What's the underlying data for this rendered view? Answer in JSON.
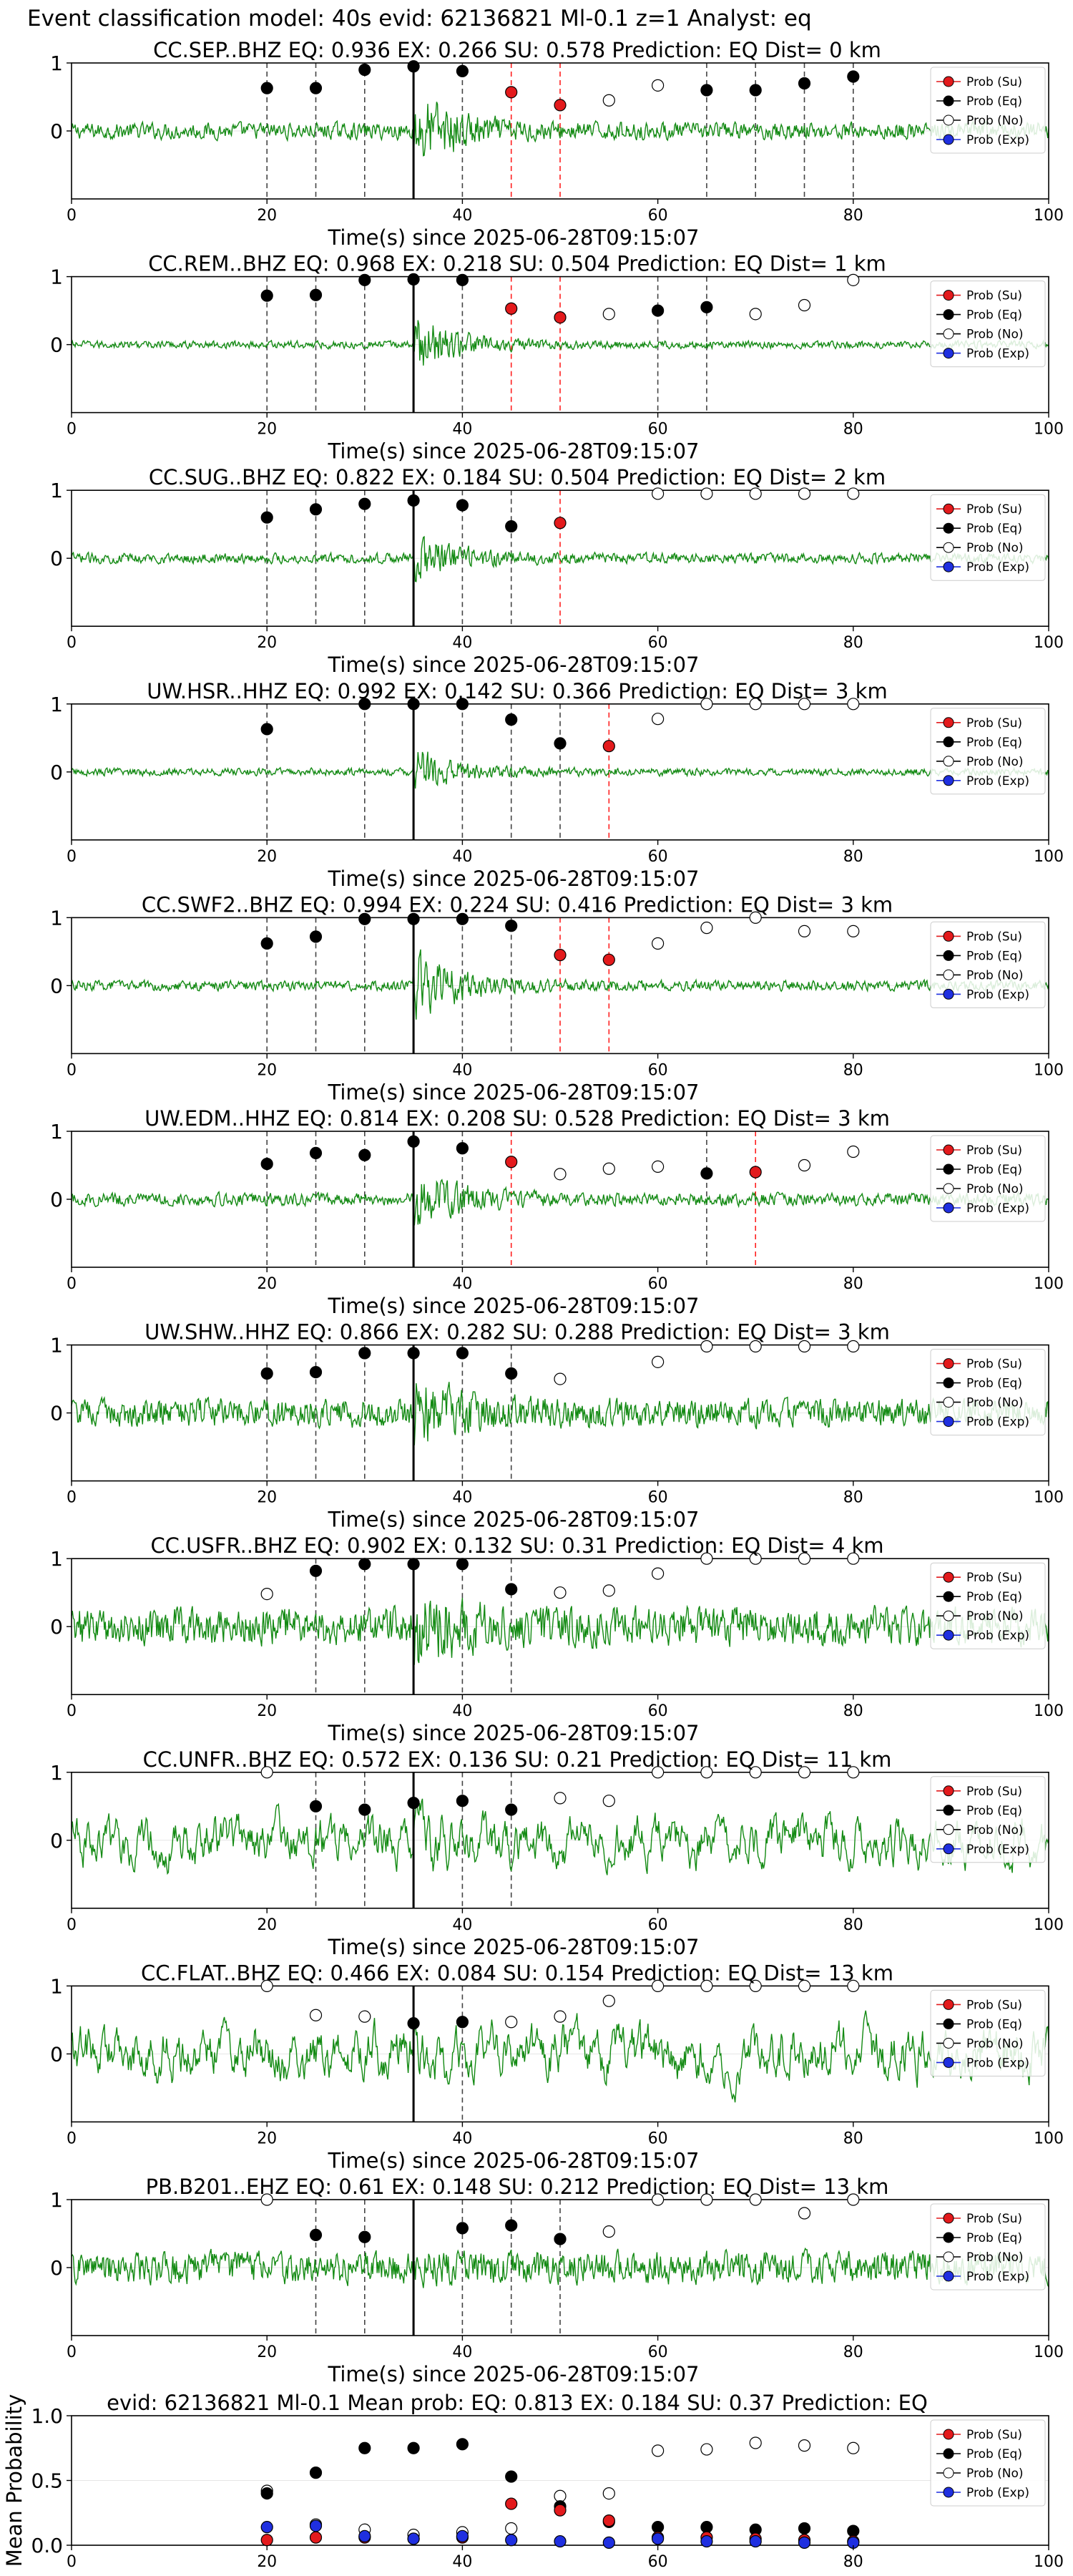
{
  "header": {
    "title": "Event classification model: 40s evid: 62136821 Ml-0.1 z=1 Analyst: eq"
  },
  "common": {
    "xlabel": "Time(s) since 2025-06-28T09:15:07",
    "legend": [
      "Prob (Su)",
      "Prob (Eq)",
      "Prob (No)",
      "Prob (Exp)"
    ],
    "colors": {
      "su": "#e31a1c",
      "eq": "#000000",
      "no": "#ffffff",
      "exp": "#1f2fe0",
      "trace": "#138a13"
    }
  },
  "chart_data": [
    {
      "type": "line",
      "station": "CC.SEP..BHZ",
      "title": "CC.SEP..BHZ   EQ: 0.936  EX: 0.266  SU: 0.578   Prediction: EQ    Dist= 0 km",
      "xlim": [
        0,
        100
      ],
      "ylim": [
        -1,
        1
      ],
      "xticks": [
        0,
        20,
        40,
        60,
        80,
        100
      ],
      "yticks": [
        1,
        0
      ],
      "onset": 35,
      "noise_amp": 0.13,
      "event_amp": 0.6,
      "eq_points": [
        [
          20,
          0.63
        ],
        [
          25,
          0.63
        ],
        [
          30,
          0.9
        ],
        [
          35,
          0.95
        ],
        [
          40,
          0.88
        ],
        [
          65,
          0.6
        ],
        [
          70,
          0.6
        ],
        [
          75,
          0.7
        ],
        [
          80,
          0.8
        ]
      ],
      "su_points": [
        [
          45,
          0.57
        ],
        [
          50,
          0.38
        ]
      ],
      "no_points": [
        [
          55,
          0.45
        ],
        [
          60,
          0.67
        ]
      ],
      "exp_points": [],
      "dash_black": [
        20,
        25,
        30,
        40,
        65,
        70,
        75,
        80
      ],
      "dash_red": [
        45,
        50
      ]
    },
    {
      "type": "line",
      "station": "CC.REM..BHZ",
      "title": "CC.REM..BHZ   EQ: 0.968  EX: 0.218  SU: 0.504   Prediction: EQ    Dist= 1 km",
      "xlim": [
        0,
        100
      ],
      "ylim": [
        -1,
        1
      ],
      "xticks": [
        0,
        20,
        40,
        60,
        80,
        100
      ],
      "yticks": [
        1,
        0
      ],
      "onset": 35,
      "noise_amp": 0.06,
      "event_amp": 0.45,
      "eq_points": [
        [
          20,
          0.72
        ],
        [
          25,
          0.73
        ],
        [
          30,
          0.95
        ],
        [
          35,
          0.96
        ],
        [
          40,
          0.95
        ],
        [
          60,
          0.5
        ],
        [
          65,
          0.55
        ]
      ],
      "su_points": [
        [
          45,
          0.53
        ],
        [
          50,
          0.4
        ]
      ],
      "no_points": [
        [
          55,
          0.45
        ],
        [
          70,
          0.45
        ],
        [
          75,
          0.58
        ],
        [
          80,
          0.95
        ]
      ],
      "exp_points": [],
      "dash_black": [
        20,
        25,
        30,
        40,
        60,
        65
      ],
      "dash_red": [
        45,
        50
      ]
    },
    {
      "type": "line",
      "station": "CC.SUG..BHZ",
      "title": "CC.SUG..BHZ   EQ: 0.822  EX: 0.184  SU: 0.504   Prediction: EQ    Dist= 2 km",
      "xlim": [
        0,
        100
      ],
      "ylim": [
        -1,
        1
      ],
      "xticks": [
        0,
        20,
        40,
        60,
        80,
        100
      ],
      "yticks": [
        1,
        0
      ],
      "onset": 35,
      "noise_amp": 0.08,
      "event_amp": 0.35,
      "eq_points": [
        [
          20,
          0.6
        ],
        [
          25,
          0.72
        ],
        [
          30,
          0.8
        ],
        [
          35,
          0.85
        ],
        [
          40,
          0.78
        ],
        [
          45,
          0.47
        ]
      ],
      "su_points": [
        [
          50,
          0.52
        ]
      ],
      "no_points": [
        [
          60,
          0.95
        ],
        [
          65,
          0.95
        ],
        [
          70,
          0.95
        ],
        [
          75,
          0.95
        ],
        [
          80,
          0.95
        ]
      ],
      "exp_points": [],
      "dash_black": [
        20,
        25,
        30,
        40,
        45
      ],
      "dash_red": [
        50
      ]
    },
    {
      "type": "line",
      "station": "UW.HSR..HHZ",
      "title": "UW.HSR..HHZ   EQ: 0.992  EX: 0.142  SU: 0.366   Prediction: EQ    Dist= 3 km",
      "xlim": [
        0,
        100
      ],
      "ylim": [
        -1,
        1
      ],
      "xticks": [
        0,
        20,
        40,
        60,
        80,
        100
      ],
      "yticks": [
        1,
        0
      ],
      "onset": 35,
      "noise_amp": 0.06,
      "event_amp": 0.35,
      "eq_points": [
        [
          20,
          0.63
        ],
        [
          30,
          1.0
        ],
        [
          35,
          1.0
        ],
        [
          40,
          1.0
        ],
        [
          45,
          0.77
        ],
        [
          50,
          0.42
        ]
      ],
      "su_points": [
        [
          55,
          0.38
        ]
      ],
      "no_points": [
        [
          60,
          0.78
        ],
        [
          65,
          1.0
        ],
        [
          70,
          1.0
        ],
        [
          75,
          1.0
        ],
        [
          80,
          1.0
        ]
      ],
      "exp_points": [],
      "dash_black": [
        20,
        30,
        40,
        45,
        50
      ],
      "dash_red": [
        55
      ]
    },
    {
      "type": "line",
      "station": "CC.SWF2..BHZ",
      "title": "CC.SWF2..BHZ   EQ: 0.994  EX: 0.224  SU: 0.416   Prediction: EQ    Dist= 3 km",
      "xlim": [
        0,
        100
      ],
      "ylim": [
        -1,
        1
      ],
      "xticks": [
        0,
        20,
        40,
        60,
        80,
        100
      ],
      "yticks": [
        1,
        0
      ],
      "onset": 35,
      "noise_amp": 0.08,
      "event_amp": 0.55,
      "eq_points": [
        [
          20,
          0.62
        ],
        [
          25,
          0.72
        ],
        [
          30,
          0.98
        ],
        [
          35,
          0.98
        ],
        [
          40,
          0.98
        ],
        [
          45,
          0.88
        ]
      ],
      "su_points": [
        [
          50,
          0.45
        ],
        [
          55,
          0.38
        ]
      ],
      "no_points": [
        [
          60,
          0.62
        ],
        [
          65,
          0.85
        ],
        [
          70,
          1.0
        ],
        [
          75,
          0.8
        ],
        [
          80,
          0.8
        ]
      ],
      "exp_points": [],
      "dash_black": [
        20,
        25,
        30,
        40,
        45
      ],
      "dash_red": [
        50,
        55
      ]
    },
    {
      "type": "line",
      "station": "UW.EDM..HHZ",
      "title": "UW.EDM..HHZ   EQ: 0.814  EX: 0.208  SU: 0.528   Prediction: EQ    Dist= 3 km",
      "xlim": [
        0,
        100
      ],
      "ylim": [
        -1,
        1
      ],
      "xticks": [
        0,
        20,
        40,
        60,
        80,
        100
      ],
      "yticks": [
        1,
        0
      ],
      "onset": 35,
      "noise_amp": 0.1,
      "event_amp": 0.45,
      "eq_points": [
        [
          20,
          0.52
        ],
        [
          25,
          0.68
        ],
        [
          30,
          0.65
        ],
        [
          35,
          0.85
        ],
        [
          40,
          0.75
        ],
        [
          65,
          0.38
        ]
      ],
      "su_points": [
        [
          45,
          0.55
        ],
        [
          70,
          0.4
        ]
      ],
      "no_points": [
        [
          50,
          0.37
        ],
        [
          55,
          0.45
        ],
        [
          60,
          0.48
        ],
        [
          75,
          0.5
        ],
        [
          80,
          0.7
        ]
      ],
      "exp_points": [],
      "dash_black": [
        20,
        25,
        30,
        40,
        65
      ],
      "dash_red": [
        45,
        70
      ]
    },
    {
      "type": "line",
      "station": "UW.SHW..HHZ",
      "title": "UW.SHW..HHZ   EQ: 0.866  EX: 0.282  SU: 0.288   Prediction: EQ    Dist= 3 km",
      "xlim": [
        0,
        100
      ],
      "ylim": [
        -1,
        1
      ],
      "xticks": [
        0,
        20,
        40,
        60,
        80,
        100
      ],
      "yticks": [
        1,
        0
      ],
      "onset": 35,
      "noise_amp": 0.22,
      "event_amp": 0.45,
      "eq_points": [
        [
          20,
          0.58
        ],
        [
          25,
          0.6
        ],
        [
          30,
          0.88
        ],
        [
          35,
          0.88
        ],
        [
          40,
          0.88
        ],
        [
          45,
          0.58
        ]
      ],
      "su_points": [],
      "no_points": [
        [
          50,
          0.5
        ],
        [
          60,
          0.75
        ],
        [
          65,
          0.98
        ],
        [
          70,
          0.98
        ],
        [
          75,
          0.98
        ],
        [
          80,
          0.98
        ]
      ],
      "exp_points": [],
      "dash_black": [
        20,
        25,
        30,
        40,
        45
      ],
      "dash_red": []
    },
    {
      "type": "line",
      "station": "CC.USFR..BHZ",
      "title": "CC.USFR..BHZ   EQ: 0.902  EX: 0.132  SU: 0.31   Prediction: EQ    Dist= 4 km",
      "xlim": [
        0,
        100
      ],
      "ylim": [
        -1,
        1
      ],
      "xticks": [
        0,
        20,
        40,
        60,
        80,
        100
      ],
      "yticks": [
        1,
        0
      ],
      "onset": 35,
      "noise_amp": 0.3,
      "event_amp": 0.5,
      "eq_points": [
        [
          25,
          0.82
        ],
        [
          30,
          0.92
        ],
        [
          35,
          0.92
        ],
        [
          40,
          0.92
        ],
        [
          45,
          0.55
        ]
      ],
      "su_points": [],
      "no_points": [
        [
          20,
          0.48
        ],
        [
          50,
          0.5
        ],
        [
          55,
          0.53
        ],
        [
          60,
          0.78
        ],
        [
          65,
          1.0
        ],
        [
          70,
          1.0
        ],
        [
          75,
          1.0
        ],
        [
          80,
          1.0
        ]
      ],
      "exp_points": [],
      "dash_black": [
        25,
        30,
        40,
        45
      ],
      "dash_red": []
    },
    {
      "type": "line",
      "station": "CC.UNFR..BHZ",
      "title": "CC.UNFR..BHZ   EQ: 0.572  EX: 0.136  SU: 0.21   Prediction: EQ    Dist= 11 km",
      "xlim": [
        0,
        100
      ],
      "ylim": [
        -1,
        1
      ],
      "xticks": [
        0,
        20,
        40,
        60,
        80,
        100
      ],
      "yticks": [
        1,
        0
      ],
      "onset": 35,
      "noise_amp": 0.4,
      "event_amp": 0.15,
      "eq_points": [
        [
          25,
          0.5
        ],
        [
          30,
          0.45
        ],
        [
          35,
          0.55
        ],
        [
          40,
          0.58
        ],
        [
          45,
          0.45
        ]
      ],
      "su_points": [],
      "no_points": [
        [
          20,
          1.0
        ],
        [
          50,
          0.62
        ],
        [
          55,
          0.58
        ],
        [
          60,
          1.0
        ],
        [
          65,
          1.0
        ],
        [
          70,
          1.0
        ],
        [
          75,
          1.0
        ],
        [
          80,
          1.0
        ]
      ],
      "exp_points": [],
      "dash_black": [
        25,
        30,
        40,
        45
      ],
      "dash_red": []
    },
    {
      "type": "line",
      "station": "CC.FLAT..BHZ",
      "title": "CC.FLAT..BHZ   EQ: 0.466  EX: 0.084  SU: 0.154   Prediction: EQ    Dist= 13 km",
      "xlim": [
        0,
        100
      ],
      "ylim": [
        -1,
        1
      ],
      "xticks": [
        0,
        20,
        40,
        60,
        80,
        100
      ],
      "yticks": [
        1,
        0
      ],
      "onset": 35,
      "noise_amp": 0.45,
      "event_amp": 0.0,
      "eq_points": [
        [
          35,
          0.45
        ],
        [
          40,
          0.47
        ]
      ],
      "su_points": [],
      "no_points": [
        [
          20,
          1.0
        ],
        [
          25,
          0.57
        ],
        [
          30,
          0.55
        ],
        [
          45,
          0.47
        ],
        [
          50,
          0.55
        ],
        [
          55,
          0.78
        ],
        [
          60,
          1.0
        ],
        [
          65,
          1.0
        ],
        [
          70,
          1.0
        ],
        [
          75,
          1.0
        ],
        [
          80,
          1.0
        ]
      ],
      "exp_points": [],
      "dash_black": [
        40
      ],
      "dash_red": []
    },
    {
      "type": "line",
      "station": "PB.B201..EHZ",
      "title": "PB.B201..EHZ   EQ: 0.61  EX: 0.148  SU: 0.212   Prediction: EQ    Dist= 13 km",
      "xlim": [
        0,
        100
      ],
      "ylim": [
        -1,
        1
      ],
      "xticks": [
        0,
        20,
        40,
        60,
        80,
        100
      ],
      "yticks": [
        1,
        0
      ],
      "onset": 35,
      "noise_amp": 0.25,
      "event_amp": 0.05,
      "eq_points": [
        [
          25,
          0.48
        ],
        [
          30,
          0.45
        ],
        [
          40,
          0.58
        ],
        [
          45,
          0.62
        ],
        [
          50,
          0.42
        ]
      ],
      "su_points": [],
      "no_points": [
        [
          20,
          1.0
        ],
        [
          55,
          0.53
        ],
        [
          60,
          1.0
        ],
        [
          65,
          1.0
        ],
        [
          70,
          1.0
        ],
        [
          75,
          0.8
        ],
        [
          80,
          1.0
        ]
      ],
      "exp_points": [],
      "dash_black": [
        25,
        30,
        40,
        45,
        50
      ],
      "dash_red": []
    },
    {
      "type": "scatter",
      "title": "evid: 62136821  Ml-0.1   Mean prob:   EQ: 0.813  EX: 0.184  SU: 0.37   Prediction: EQ",
      "ylabel": "Mean Probability",
      "xlim": [
        0,
        100
      ],
      "ylim": [
        0,
        1
      ],
      "xticks": [
        0,
        20,
        40,
        60,
        80,
        100
      ],
      "yticks": [
        1.0,
        0.5,
        0.0
      ],
      "x": [
        20,
        25,
        30,
        35,
        40,
        45,
        50,
        55,
        60,
        65,
        70,
        75,
        80
      ],
      "eq": [
        0.4,
        0.56,
        0.75,
        0.75,
        0.78,
        0.53,
        0.3,
        0.18,
        0.14,
        0.14,
        0.12,
        0.13,
        0.11
      ],
      "su": [
        0.04,
        0.06,
        0.06,
        0.05,
        0.06,
        0.32,
        0.27,
        0.19,
        0.06,
        0.06,
        0.05,
        0.04,
        0.03
      ],
      "no": [
        0.42,
        0.16,
        0.12,
        0.08,
        0.1,
        0.13,
        0.38,
        0.4,
        0.73,
        0.74,
        0.79,
        0.77,
        0.75
      ],
      "exp": [
        0.14,
        0.15,
        0.07,
        0.05,
        0.07,
        0.04,
        0.03,
        0.02,
        0.05,
        0.03,
        0.03,
        0.02,
        0.02
      ]
    }
  ]
}
